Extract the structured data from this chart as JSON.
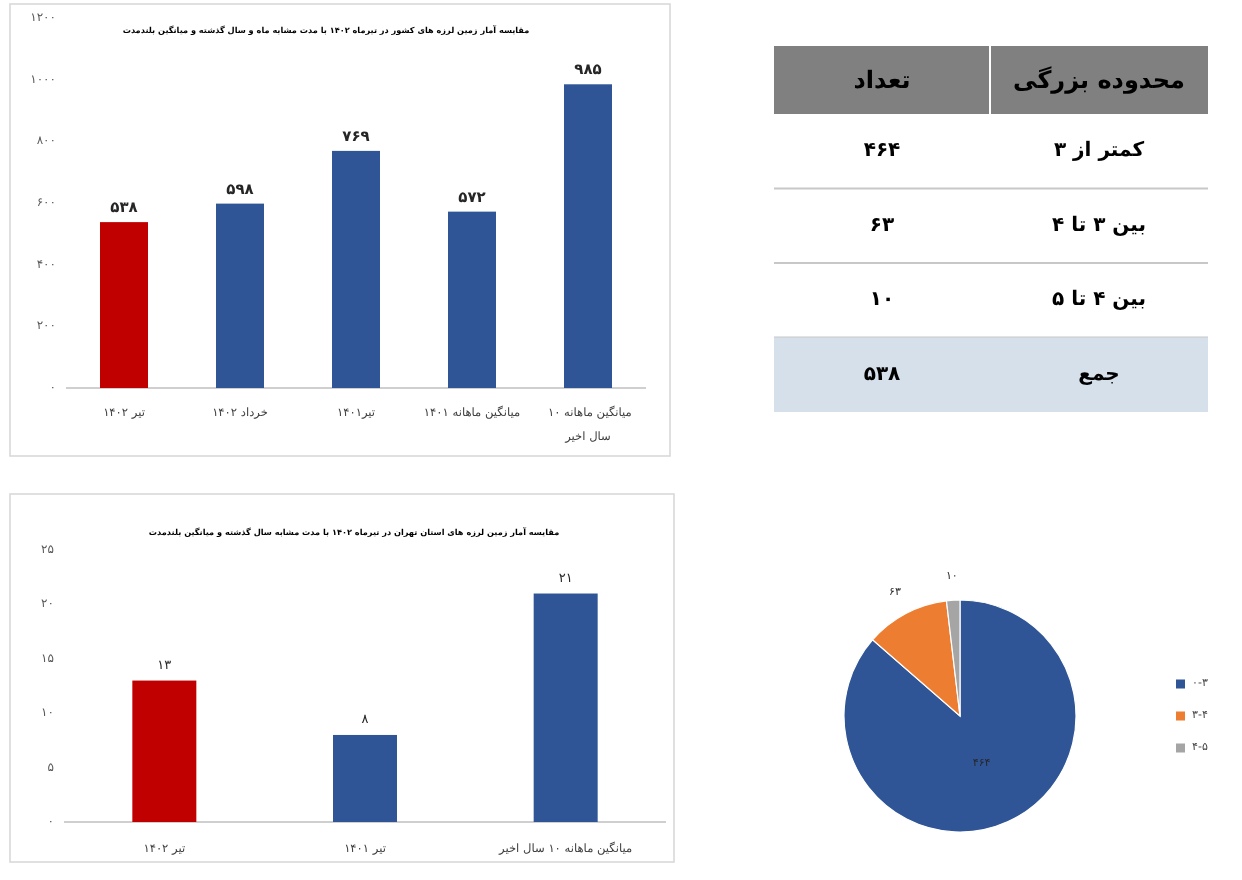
{
  "chart_data": [
    {
      "type": "bar",
      "title": "مقایسه آمار زمین لرزه های کشور در تیرماه ۱۴۰۲ با مدت مشابه ماه و سال گذشته و میانگین بلندمدت",
      "categories": [
        "تیر ۱۴۰۲",
        "خرداد ۱۴۰۲",
        "تیر۱۴۰۱",
        "میانگین ماهانه ۱۴۰۱",
        "میانگین ماهانه ۱۰ سال اخیر"
      ],
      "values": [
        538,
        598,
        769,
        572,
        985
      ],
      "colors": [
        "#c00000",
        "#2f5597",
        "#2f5597",
        "#2f5597",
        "#2f5597"
      ],
      "value_labels": [
        "۵۳۸",
        "۵۹۸",
        "۷۶۹",
        "۵۷۲",
        "۹۸۵"
      ],
      "ylim": [
        0,
        1200
      ],
      "yticks": [
        {
          "value": 0,
          "label": "۰"
        },
        {
          "value": 200,
          "label": "۲۰۰"
        },
        {
          "value": 400,
          "label": "۴۰۰"
        },
        {
          "value": 600,
          "label": "۶۰۰"
        },
        {
          "value": 800,
          "label": "۸۰۰"
        },
        {
          "value": 1000,
          "label": "۱۰۰۰"
        },
        {
          "value": 1200,
          "label": "۱۲۰۰"
        }
      ]
    },
    {
      "type": "other",
      "xlabel": "محدوده بزرگی",
      "ylabel": "تعداد",
      "categories": [
        "کمتر از ۳",
        "بین ۳ تا ۴",
        "بین ۴ تا ۵",
        "جمع"
      ],
      "value_labels": [
        "۴۶۴",
        "۶۳",
        "۱۰",
        "۵۳۸"
      ]
    },
    {
      "type": "bar",
      "title": "مقایسه آمار زمین لرزه های استان تهران در تیرماه ۱۴۰۲ با مدت مشابه سال گذشته و میانگین بلندمدت",
      "categories": [
        "تیر ۱۴۰۲",
        "تیر ۱۴۰۱",
        "میانگین ماهانه ۱۰ سال اخیر"
      ],
      "values": [
        13,
        8,
        21
      ],
      "colors": [
        "#c00000",
        "#2f5597",
        "#2f5597"
      ],
      "value_labels": [
        "۱۳",
        "۸",
        "۲۱"
      ],
      "ylim": [
        0,
        25
      ],
      "yticks": [
        {
          "value": 0,
          "label": "۰"
        },
        {
          "value": 5,
          "label": "۵"
        },
        {
          "value": 10,
          "label": "۱۰"
        },
        {
          "value": 15,
          "label": "۱۵"
        },
        {
          "value": 20,
          "label": "۲۰"
        },
        {
          "value": 25,
          "label": "۲۵"
        }
      ]
    },
    {
      "type": "pie",
      "categories": [
        "۰-۳",
        "۳-۴",
        "۴-۵"
      ],
      "values": [
        464,
        63,
        10
      ],
      "colors": [
        "#2f5597",
        "#ed7d31",
        "#a5a5a5"
      ],
      "value_labels": [
        "۴۶۴",
        "۶۳",
        "۱۰"
      ],
      "legend": "right"
    }
  ]
}
